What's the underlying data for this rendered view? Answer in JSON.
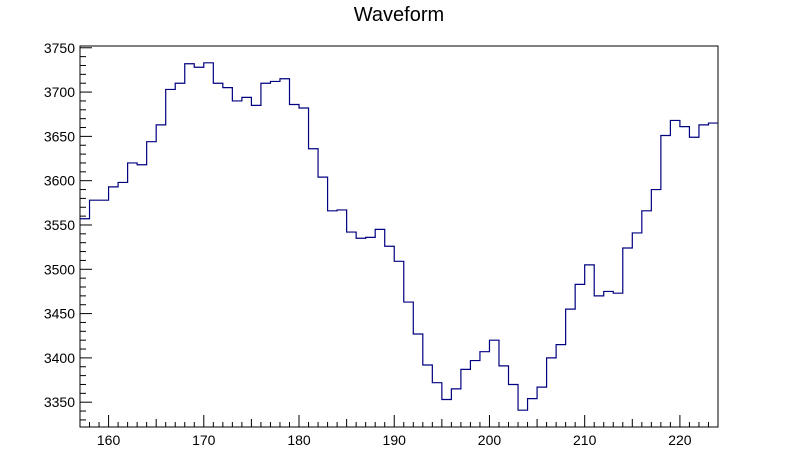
{
  "chart_data": {
    "type": "line",
    "style": "step-histogram",
    "title": "Waveform",
    "xlabel": "",
    "ylabel": "",
    "xlim": [
      157,
      224
    ],
    "ylim": [
      3322,
      3752
    ],
    "x_ticks": [
      160,
      170,
      180,
      190,
      200,
      210,
      220
    ],
    "y_ticks": [
      3350,
      3400,
      3450,
      3500,
      3550,
      3600,
      3650,
      3700,
      3750
    ],
    "grid": false,
    "legend": "none",
    "line_color": "#000080",
    "series": [
      {
        "bin_width": 1,
        "x": [
          157,
          158,
          159,
          160,
          161,
          162,
          163,
          164,
          165,
          166,
          167,
          168,
          169,
          170,
          171,
          172,
          173,
          174,
          175,
          176,
          177,
          178,
          179,
          180,
          181,
          182,
          183,
          184,
          185,
          186,
          187,
          188,
          189,
          190,
          191,
          192,
          193,
          194,
          195,
          196,
          197,
          198,
          199,
          200,
          201,
          202,
          203,
          204,
          205,
          206,
          207,
          208,
          209,
          210,
          211,
          212,
          213,
          214,
          215,
          216,
          217,
          218,
          219,
          220,
          221,
          222,
          223
        ],
        "values": [
          3557,
          3578,
          3578,
          3593,
          3598,
          3620,
          3618,
          3644,
          3663,
          3703,
          3710,
          3732,
          3728,
          3733,
          3710,
          3705,
          3690,
          3694,
          3685,
          3710,
          3712,
          3715,
          3686,
          3682,
          3636,
          3604,
          3566,
          3567,
          3542,
          3535,
          3536,
          3545,
          3526,
          3509,
          3463,
          3427,
          3392,
          3372,
          3353,
          3365,
          3387,
          3397,
          3407,
          3420,
          3391,
          3370,
          3341,
          3354,
          3367,
          3400,
          3415,
          3455,
          3483,
          3505,
          3470,
          3475,
          3473,
          3524,
          3541,
          3566,
          3590,
          3651,
          3668,
          3661,
          3649,
          3663,
          3665
        ]
      }
    ]
  }
}
